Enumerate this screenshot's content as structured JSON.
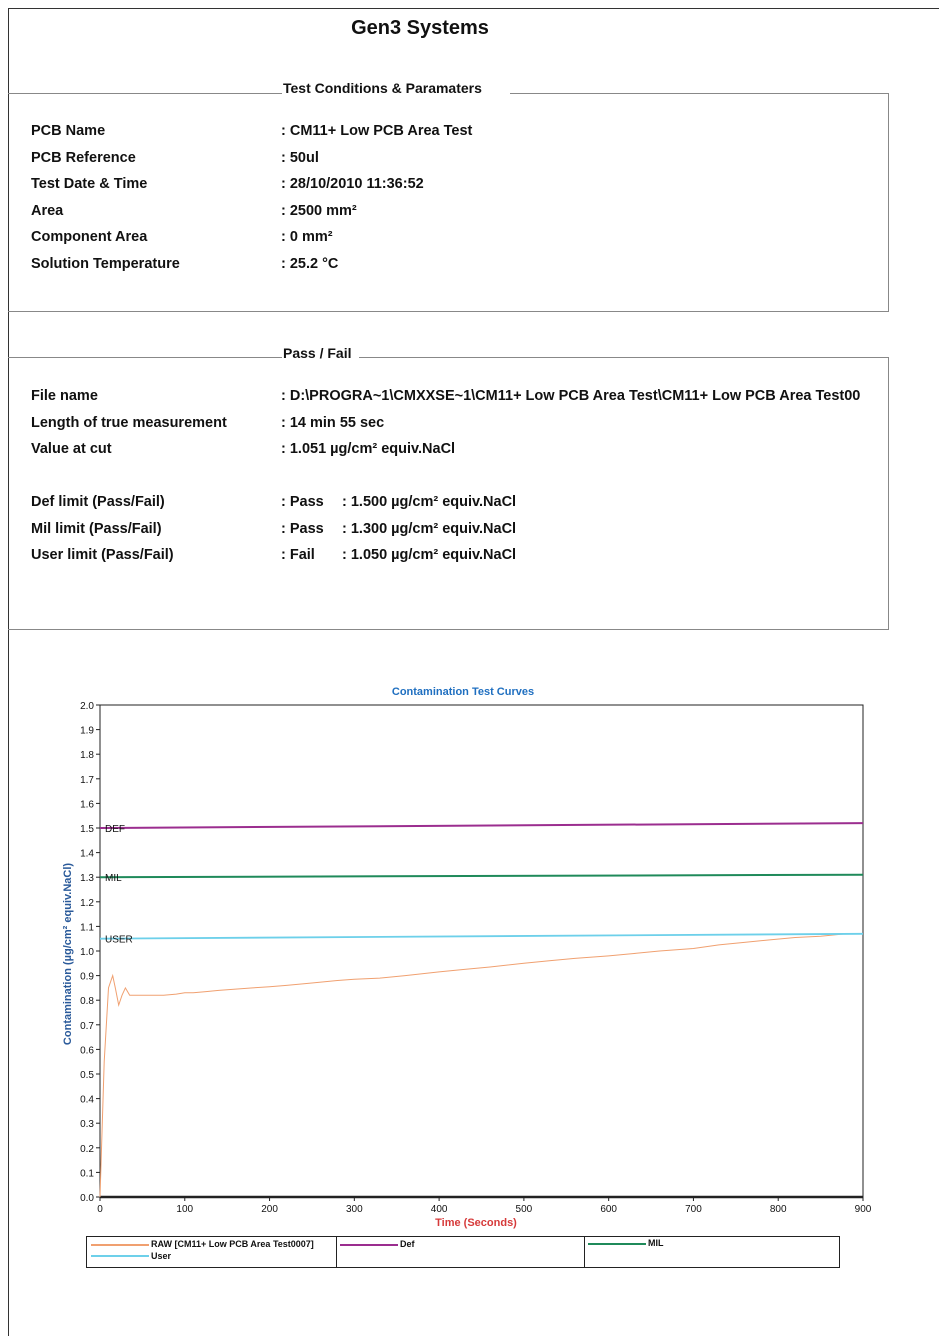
{
  "header": {
    "title": "Gen3 Systems"
  },
  "conditions": {
    "title": "Test Conditions & Paramaters",
    "rows": [
      {
        "label": "PCB Name",
        "value": ": CM11+ Low PCB Area Test"
      },
      {
        "label": "PCB Reference",
        "value": ": 50ul"
      },
      {
        "label": "Test Date & Time",
        "value": ": 28/10/2010 11:36:52"
      },
      {
        "label": "Area",
        "value": ": 2500 mm²"
      },
      {
        "label": "Component Area",
        "value": ": 0 mm²"
      },
      {
        "label": "Solution Temperature",
        "value": ": 25.2 °C"
      }
    ]
  },
  "passfail": {
    "title": "Pass / Fail",
    "rows": [
      {
        "label": "File name",
        "value": ": D:\\PROGRA~1\\CMXXSE~1\\CM11+ Low PCB Area Test\\CM11+ Low PCB Area Test00"
      },
      {
        "label": "Length of true measurement",
        "value": ": 14 min 55 sec"
      },
      {
        "label": "Value at cut",
        "value": ": 1.051 µg/cm² equiv.NaCl"
      }
    ],
    "limits": [
      {
        "label": "Def limit (Pass/Fail)",
        "result": ": Pass",
        "value": ": 1.500 µg/cm² equiv.NaCl"
      },
      {
        "label": "Mil limit (Pass/Fail)",
        "result": ": Pass",
        "value": ": 1.300 µg/cm² equiv.NaCl"
      },
      {
        "label": "User limit (Pass/Fail)",
        "result": ": Fail",
        "value": ": 1.050 µg/cm² equiv.NaCl"
      }
    ]
  },
  "chart_data": {
    "type": "line",
    "title": "Contamination Test Curves",
    "xlabel": "Time (Seconds)",
    "ylabel": "Contamination (µg/cm² equiv.NaCl)",
    "xlim": [
      0,
      900
    ],
    "ylim": [
      0,
      2.0
    ],
    "xticks": [
      0,
      100,
      200,
      300,
      400,
      500,
      600,
      700,
      800,
      900
    ],
    "yticks": [
      "0.0",
      "0.1",
      "0.2",
      "0.3",
      "0.4",
      "0.5",
      "0.6",
      "0.7",
      "0.8",
      "0.9",
      "1.0",
      "1.1",
      "1.2",
      "1.3",
      "1.4",
      "1.5",
      "1.6",
      "1.7",
      "1.8",
      "1.9",
      "2.0"
    ],
    "grid": false,
    "legend_position": "bottom",
    "colors": {
      "raw": "#f0a070",
      "def": "#9b2d8f",
      "mil": "#1f8a5a",
      "user": "#6dd0ea",
      "title": "#1f6fc0",
      "xlabel": "#d63a3a",
      "ylabel": "#2a5a9a"
    },
    "limit_labels": [
      {
        "text": "DEF",
        "y": 1.5
      },
      {
        "text": "MIL",
        "y": 1.3
      },
      {
        "text": "USER",
        "y": 1.05
      }
    ],
    "series": [
      {
        "name": "RAW [CM11+ Low PCB Area Test0007]",
        "key": "raw",
        "x": [
          0,
          5,
          10,
          15,
          18,
          22,
          26,
          30,
          35,
          40,
          50,
          60,
          75,
          90,
          100,
          110,
          125,
          140,
          160,
          180,
          200,
          220,
          250,
          280,
          300,
          330,
          360,
          400,
          430,
          460,
          500,
          530,
          560,
          600,
          630,
          660,
          700,
          730,
          760,
          790,
          820,
          850,
          880,
          895
        ],
        "y": [
          0.0,
          0.55,
          0.85,
          0.9,
          0.85,
          0.78,
          0.82,
          0.85,
          0.82,
          0.82,
          0.82,
          0.82,
          0.82,
          0.825,
          0.83,
          0.83,
          0.835,
          0.84,
          0.845,
          0.85,
          0.855,
          0.86,
          0.87,
          0.88,
          0.885,
          0.89,
          0.9,
          0.915,
          0.925,
          0.935,
          0.95,
          0.96,
          0.97,
          0.98,
          0.99,
          1.0,
          1.01,
          1.025,
          1.035,
          1.045,
          1.055,
          1.06,
          1.07,
          1.07
        ]
      },
      {
        "name": "Def",
        "key": "def",
        "x": [
          0,
          900
        ],
        "y": [
          1.5,
          1.52
        ]
      },
      {
        "name": "MIL",
        "key": "mil",
        "x": [
          0,
          900
        ],
        "y": [
          1.3,
          1.31
        ]
      },
      {
        "name": "User",
        "key": "user",
        "x": [
          0,
          900
        ],
        "y": [
          1.05,
          1.07
        ]
      }
    ]
  },
  "legend": {
    "raw_label": "RAW [CM11+ Low PCB Area Test0007]",
    "def_label": "Def",
    "mil_label": "MIL",
    "user_label": "User"
  }
}
